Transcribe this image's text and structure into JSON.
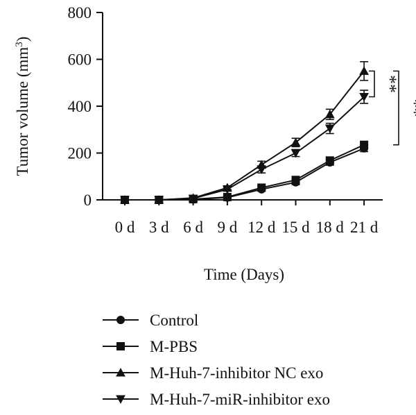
{
  "chart_data": {
    "type": "line",
    "x": [
      "0 d",
      "3 d",
      "6 d",
      "9 d",
      "12 d",
      "15 d",
      "18 d",
      "21 d"
    ],
    "xlabel": "Time (Days)",
    "ylabel": "Tumor volume (mm",
    "ylabel_sup": "3",
    "ylabel_end": ")",
    "ylim": [
      0,
      800
    ],
    "yticks": [
      0,
      200,
      400,
      600,
      800
    ],
    "grid": false,
    "legend_position": "bottom",
    "series": [
      {
        "name": "Control",
        "marker": "circle",
        "values": [
          0,
          0,
          2,
          10,
          45,
          75,
          160,
          220
        ],
        "errors": [
          0,
          0,
          2,
          4,
          8,
          10,
          12,
          14
        ]
      },
      {
        "name": "M-PBS",
        "marker": "square",
        "values": [
          0,
          0,
          3,
          12,
          52,
          85,
          168,
          235
        ],
        "errors": [
          0,
          0,
          2,
          4,
          8,
          10,
          12,
          14
        ]
      },
      {
        "name": "M-Huh-7-inhibitor NC exo",
        "marker": "triangle-up",
        "values": [
          0,
          0,
          8,
          52,
          150,
          245,
          365,
          550
        ],
        "errors": [
          0,
          0,
          3,
          8,
          15,
          18,
          22,
          40
        ]
      },
      {
        "name": "M-Huh-7-miR-inhibitor exo",
        "marker": "triangle-down",
        "values": [
          0,
          0,
          6,
          45,
          130,
          200,
          305,
          440
        ],
        "errors": [
          0,
          0,
          3,
          8,
          15,
          15,
          22,
          28
        ]
      }
    ],
    "significance": [
      {
        "label": "**",
        "from_value": 550,
        "to_value": 440
      },
      {
        "label": "**",
        "from_value": 550,
        "to_value": 235
      }
    ]
  }
}
